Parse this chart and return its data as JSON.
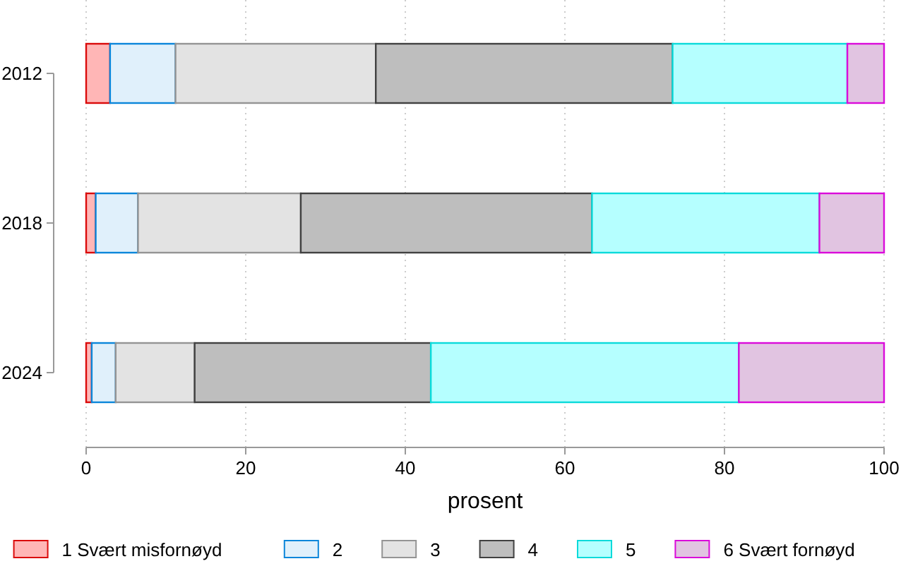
{
  "chart_data": {
    "type": "bar",
    "orientation": "horizontal",
    "stacked": true,
    "xlabel": "prosent",
    "categories": [
      "2012",
      "2018",
      "2024"
    ],
    "xlim": [
      0,
      100
    ],
    "xticks": [
      0,
      20,
      40,
      60,
      80,
      100
    ],
    "grid": "x",
    "legend": "bottom",
    "series": [
      {
        "name": "1 Svært misfornøyd",
        "color": "#ffb6b6",
        "values": [
          3.0,
          1.2,
          0.7
        ]
      },
      {
        "name": "2",
        "color": "#e0f0fb",
        "values": [
          8.2,
          5.3,
          3.0
        ]
      },
      {
        "name": "3",
        "color": "#e3e3e3",
        "values": [
          25.1,
          20.4,
          9.9
        ]
      },
      {
        "name": "4",
        "color": "#bebebe",
        "values": [
          37.2,
          36.5,
          29.6
        ]
      },
      {
        "name": "5",
        "color": "#b5ffff",
        "values": [
          21.9,
          28.5,
          38.6
        ]
      },
      {
        "name": "6 Svært fornøyd",
        "color": "#e1c4e1",
        "values": [
          4.6,
          8.1,
          18.2
        ]
      }
    ]
  }
}
